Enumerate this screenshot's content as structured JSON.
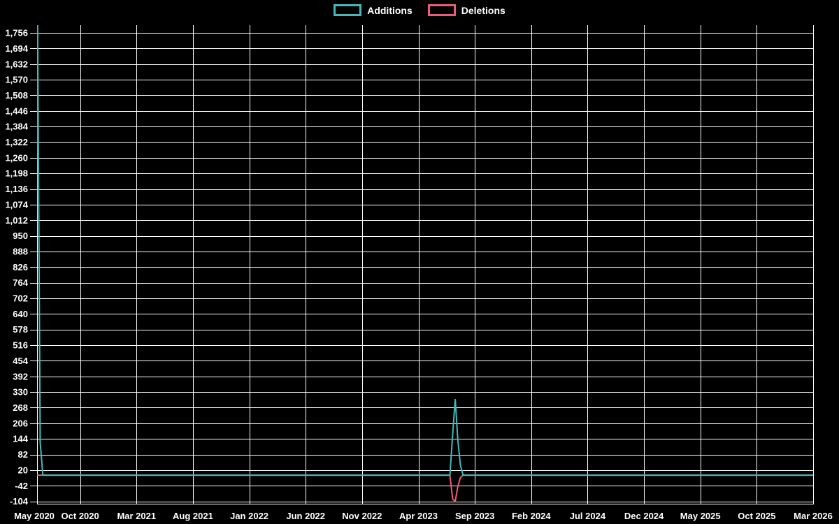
{
  "page": {
    "background": "#000000"
  },
  "style": {
    "grid_color": "#ffffff",
    "axis_color": "#ffffff",
    "text_color": "#ffffff",
    "additions_color": "#46b8b8",
    "deletions_color": "#ea5c77"
  },
  "legend": {
    "items": [
      {
        "label": "Additions",
        "color": "#46b8b8"
      },
      {
        "label": "Deletions",
        "color": "#ea5c77"
      }
    ]
  },
  "chart_data": {
    "type": "line",
    "title": "",
    "xlabel": "",
    "ylabel": "",
    "grid": true,
    "legend_position": "top-center",
    "x_axis": {
      "domain_start": "2020-05-01",
      "domain_end": "2026-03-01",
      "tick_labels": [
        "May 2020",
        "Oct 2020",
        "Mar 2021",
        "Aug 2021",
        "Jan 2022",
        "Jun 2022",
        "Nov 2022",
        "Apr 2023",
        "Sep 2023",
        "Feb 2024",
        "Jul 2024",
        "Dec 2024",
        "May 2025",
        "Oct 2025",
        "Mar 2026"
      ]
    },
    "y_axis": {
      "tick_step": 62,
      "min_tick": -104,
      "max_tick": 1756,
      "tick_values": [
        1756,
        1694,
        1632,
        1570,
        1508,
        1446,
        1384,
        1322,
        1260,
        1198,
        1136,
        1074,
        1012,
        950,
        888,
        826,
        764,
        702,
        640,
        578,
        516,
        454,
        392,
        330,
        268,
        206,
        144,
        82,
        20,
        -42,
        -104
      ],
      "tick_labels": [
        "1,756",
        "1,694",
        "1,632",
        "1,570",
        "1,508",
        "1,446",
        "1,384",
        "1,322",
        "1,260",
        "1,198",
        "1,136",
        "1,074",
        "1,012",
        "950",
        "888",
        "826",
        "764",
        "702",
        "640",
        "578",
        "516",
        "454",
        "392",
        "330",
        "268",
        "206",
        "144",
        "82",
        "20",
        "-42",
        "-104"
      ]
    },
    "series": [
      {
        "name": "Additions",
        "color": "#46b8b8",
        "points": [
          [
            "2020-06-01",
            0
          ],
          [
            "2020-06-08",
            1787
          ],
          [
            "2020-06-15",
            130
          ],
          [
            "2020-06-22",
            0
          ],
          [
            "2023-06-25",
            0
          ],
          [
            "2023-07-02",
            160
          ],
          [
            "2023-07-09",
            302
          ],
          [
            "2023-07-16",
            140
          ],
          [
            "2023-07-23",
            40
          ],
          [
            "2023-07-30",
            0
          ],
          [
            "2026-03-01",
            0
          ]
        ]
      },
      {
        "name": "Deletions",
        "color": "#ea5c77",
        "points": [
          [
            "2020-06-01",
            0
          ],
          [
            "2023-06-25",
            0
          ],
          [
            "2023-07-02",
            -95
          ],
          [
            "2023-07-09",
            -104
          ],
          [
            "2023-07-16",
            -45
          ],
          [
            "2023-07-23",
            -10
          ],
          [
            "2023-07-30",
            0
          ],
          [
            "2026-03-01",
            0
          ]
        ]
      }
    ]
  }
}
